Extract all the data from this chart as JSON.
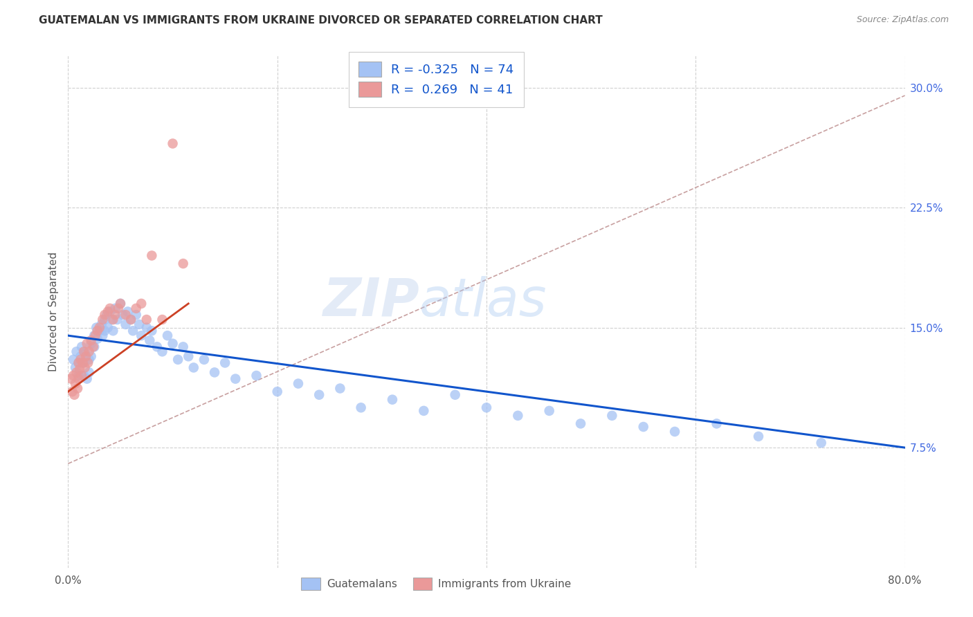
{
  "title": "GUATEMALAN VS IMMIGRANTS FROM UKRAINE DIVORCED OR SEPARATED CORRELATION CHART",
  "source": "Source: ZipAtlas.com",
  "ylabel": "Divorced or Separated",
  "ytick_labels": [
    "7.5%",
    "15.0%",
    "22.5%",
    "30.0%"
  ],
  "ytick_values": [
    0.075,
    0.15,
    0.225,
    0.3
  ],
  "xlim": [
    0.0,
    0.8
  ],
  "ylim": [
    0.0,
    0.32
  ],
  "legend_blue_label": "R = -0.325   N = 74",
  "legend_pink_label": "R =  0.269   N = 41",
  "blue_color": "#a4c2f4",
  "pink_color": "#ea9999",
  "blue_line_color": "#1155cc",
  "pink_line_color": "#cc4125",
  "grid_color": "#d0d0d0",
  "watermark_text": "ZIPatlas",
  "blue_scatter_x": [
    0.005,
    0.007,
    0.008,
    0.01,
    0.01,
    0.012,
    0.013,
    0.015,
    0.015,
    0.016,
    0.018,
    0.02,
    0.02,
    0.022,
    0.022,
    0.025,
    0.025,
    0.027,
    0.028,
    0.03,
    0.032,
    0.033,
    0.035,
    0.035,
    0.037,
    0.038,
    0.04,
    0.042,
    0.043,
    0.045,
    0.047,
    0.05,
    0.052,
    0.055,
    0.057,
    0.06,
    0.062,
    0.065,
    0.068,
    0.07,
    0.075,
    0.078,
    0.08,
    0.085,
    0.09,
    0.095,
    0.1,
    0.105,
    0.11,
    0.115,
    0.12,
    0.13,
    0.14,
    0.15,
    0.16,
    0.18,
    0.2,
    0.22,
    0.24,
    0.26,
    0.28,
    0.31,
    0.34,
    0.37,
    0.4,
    0.43,
    0.46,
    0.49,
    0.52,
    0.55,
    0.58,
    0.62,
    0.66,
    0.72
  ],
  "blue_scatter_y": [
    0.13,
    0.125,
    0.135,
    0.128,
    0.12,
    0.132,
    0.138,
    0.128,
    0.12,
    0.135,
    0.118,
    0.13,
    0.122,
    0.14,
    0.132,
    0.145,
    0.138,
    0.15,
    0.143,
    0.148,
    0.152,
    0.145,
    0.155,
    0.148,
    0.158,
    0.15,
    0.16,
    0.155,
    0.148,
    0.162,
    0.155,
    0.165,
    0.158,
    0.152,
    0.16,
    0.155,
    0.148,
    0.158,
    0.152,
    0.145,
    0.15,
    0.142,
    0.148,
    0.138,
    0.135,
    0.145,
    0.14,
    0.13,
    0.138,
    0.132,
    0.125,
    0.13,
    0.122,
    0.128,
    0.118,
    0.12,
    0.11,
    0.115,
    0.108,
    0.112,
    0.1,
    0.105,
    0.098,
    0.108,
    0.1,
    0.095,
    0.098,
    0.09,
    0.095,
    0.088,
    0.085,
    0.09,
    0.082,
    0.078
  ],
  "pink_scatter_x": [
    0.003,
    0.004,
    0.005,
    0.006,
    0.007,
    0.008,
    0.009,
    0.01,
    0.01,
    0.011,
    0.012,
    0.013,
    0.014,
    0.015,
    0.016,
    0.017,
    0.018,
    0.019,
    0.02,
    0.022,
    0.024,
    0.026,
    0.028,
    0.03,
    0.033,
    0.035,
    0.038,
    0.04,
    0.043,
    0.045,
    0.048,
    0.05,
    0.055,
    0.06,
    0.065,
    0.07,
    0.075,
    0.08,
    0.09,
    0.1,
    0.11
  ],
  "pink_scatter_y": [
    0.118,
    0.11,
    0.12,
    0.108,
    0.115,
    0.122,
    0.112,
    0.128,
    0.118,
    0.124,
    0.13,
    0.12,
    0.128,
    0.135,
    0.125,
    0.132,
    0.14,
    0.128,
    0.135,
    0.142,
    0.138,
    0.145,
    0.148,
    0.15,
    0.155,
    0.158,
    0.16,
    0.162,
    0.155,
    0.158,
    0.162,
    0.165,
    0.158,
    0.155,
    0.162,
    0.165,
    0.155,
    0.195,
    0.155,
    0.265,
    0.19
  ],
  "blue_trendline_x0": 0.0,
  "blue_trendline_x1": 0.8,
  "blue_trendline_y0": 0.145,
  "blue_trendline_y1": 0.075,
  "pink_trendline_x0": 0.0,
  "pink_trendline_x1": 0.115,
  "pink_trendline_y0": 0.11,
  "pink_trendline_y1": 0.165,
  "dash_trendline_x0": 0.0,
  "dash_trendline_x1": 0.8,
  "dash_trendline_y0": 0.065,
  "dash_trendline_y1": 0.295
}
